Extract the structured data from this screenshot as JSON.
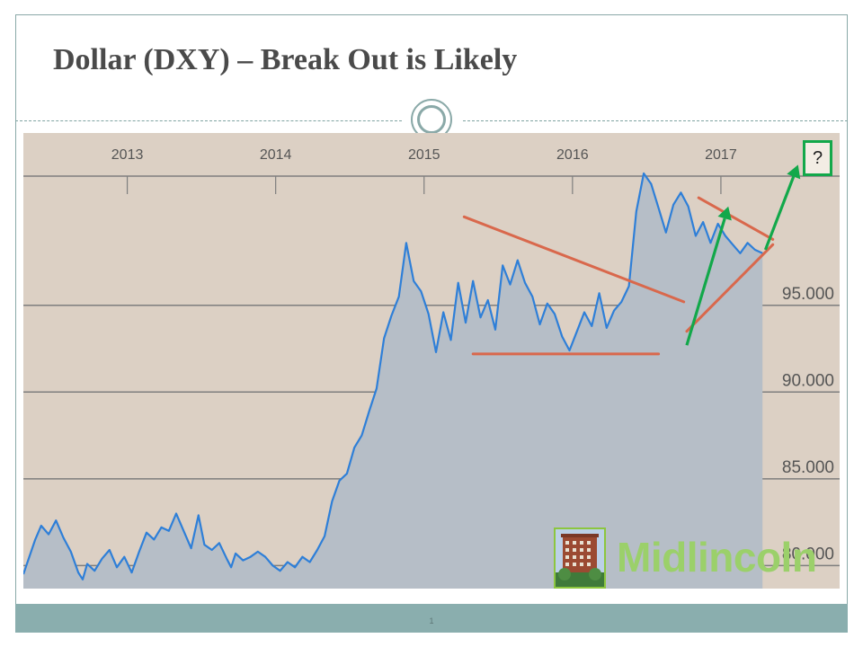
{
  "slide": {
    "title": "Dollar (DXY) – Break Out is Likely",
    "page_number": "1"
  },
  "logo": {
    "text": "Midlincoln",
    "icon": "building-photo-icon"
  },
  "question_box": {
    "text": "?"
  },
  "colors": {
    "chart_background": "#dcd0c4",
    "area_fill": "#b6bec7",
    "line": "#2e7fd8",
    "gridline": "#7e7e7e",
    "trend_lines": "#d9684c",
    "arrows": "#12a84a",
    "footer": "#8aaeae"
  },
  "chart_data": {
    "type": "area",
    "title": "",
    "xlabel": "",
    "ylabel": "",
    "x_ticks": [
      "2013",
      "2014",
      "2015",
      "2016",
      "2017"
    ],
    "x_tick_dates": [
      2013.0,
      2014.0,
      2015.0,
      2016.0,
      2017.0
    ],
    "y_ticks": [
      80,
      85,
      90,
      95
    ],
    "y_tick_labels": [
      "80.000",
      "85.000",
      "90.000",
      "95.000"
    ],
    "xlim": [
      2012.3,
      2017.8
    ],
    "ylim": [
      78,
      104
    ],
    "grid": "horizontal",
    "series": [
      {
        "x": [
          2012.3,
          2012.38,
          2012.42,
          2012.47,
          2012.52,
          2012.57,
          2012.62,
          2012.67,
          2012.7,
          2012.73,
          2012.78,
          2012.83,
          2012.88,
          2012.93,
          2012.98,
          2013.03,
          2013.08,
          2013.13,
          2013.18,
          2013.23,
          2013.28,
          2013.33,
          2013.38,
          2013.43,
          2013.48,
          2013.52,
          2013.57,
          2013.62,
          2013.67,
          2013.7,
          2013.73,
          2013.78,
          2013.83,
          2013.88,
          2013.93,
          2013.98,
          2014.03,
          2014.08,
          2014.13,
          2014.18,
          2014.23,
          2014.28,
          2014.33,
          2014.38,
          2014.43,
          2014.48,
          2014.53,
          2014.58,
          2014.63,
          2014.68,
          2014.73,
          2014.78,
          2014.83,
          2014.88,
          2014.93,
          2014.98,
          2015.03,
          2015.08,
          2015.13,
          2015.18,
          2015.23,
          2015.28,
          2015.33,
          2015.38,
          2015.43,
          2015.48,
          2015.53,
          2015.58,
          2015.63,
          2015.68,
          2015.73,
          2015.78,
          2015.83,
          2015.88,
          2015.93,
          2015.98,
          2016.03,
          2016.08,
          2016.13,
          2016.18,
          2016.23,
          2016.28,
          2016.33,
          2016.38,
          2016.43,
          2016.48,
          2016.53,
          2016.58,
          2016.63,
          2016.68,
          2016.73,
          2016.78,
          2016.83,
          2016.88,
          2016.93,
          2016.98,
          2017.03,
          2017.08,
          2017.13,
          2017.18,
          2017.23,
          2017.28
        ],
        "y": [
          79.5,
          81.5,
          82.3,
          81.8,
          82.6,
          81.6,
          80.8,
          79.6,
          79.2,
          80.1,
          79.7,
          80.4,
          80.9,
          79.9,
          80.5,
          79.6,
          80.8,
          81.9,
          81.5,
          82.2,
          82.0,
          83.0,
          82.0,
          81.0,
          82.9,
          81.2,
          80.9,
          81.3,
          80.4,
          79.9,
          80.7,
          80.3,
          80.5,
          80.8,
          80.5,
          80.0,
          79.7,
          80.2,
          79.9,
          80.5,
          80.2,
          80.9,
          81.7,
          83.7,
          84.9,
          85.3,
          86.8,
          87.5,
          88.9,
          90.2,
          93.1,
          94.4,
          95.5,
          98.6,
          96.4,
          95.8,
          94.5,
          92.3,
          94.6,
          93.0,
          96.3,
          94.0,
          96.4,
          94.3,
          95.3,
          93.6,
          97.3,
          96.2,
          97.6,
          96.3,
          95.5,
          93.9,
          95.1,
          94.5,
          93.2,
          92.4,
          93.5,
          94.6,
          93.8,
          95.7,
          93.7,
          94.7,
          95.2,
          96.1,
          100.4,
          102.6,
          102.0,
          100.6,
          99.2,
          100.8,
          101.5,
          100.7,
          99.0,
          99.8,
          98.6,
          99.7,
          99.0,
          98.5,
          98.0,
          98.6,
          98.2,
          98.0
        ]
      }
    ],
    "annotations": {
      "resistance_line": {
        "x": [
          2015.27,
          2016.75
        ],
        "y": [
          100.1,
          95.2
        ]
      },
      "support_line": {
        "x": [
          2015.33,
          2016.58
        ],
        "y": [
          92.2,
          92.2
        ]
      },
      "wedge_upper_line": {
        "x": [
          2016.85,
          2017.35
        ],
        "y": [
          101.2,
          98.8
        ]
      },
      "wedge_lower_line": {
        "x": [
          2016.77,
          2017.35
        ],
        "y": [
          93.5,
          98.5
        ]
      },
      "arrow_1": {
        "x": [
          2016.77,
          2017.05
        ],
        "y": [
          92.7,
          100.7
        ]
      },
      "arrow_2": {
        "x": [
          2017.3,
          2017.52
        ],
        "y": [
          98.2,
          103.1
        ]
      }
    }
  }
}
